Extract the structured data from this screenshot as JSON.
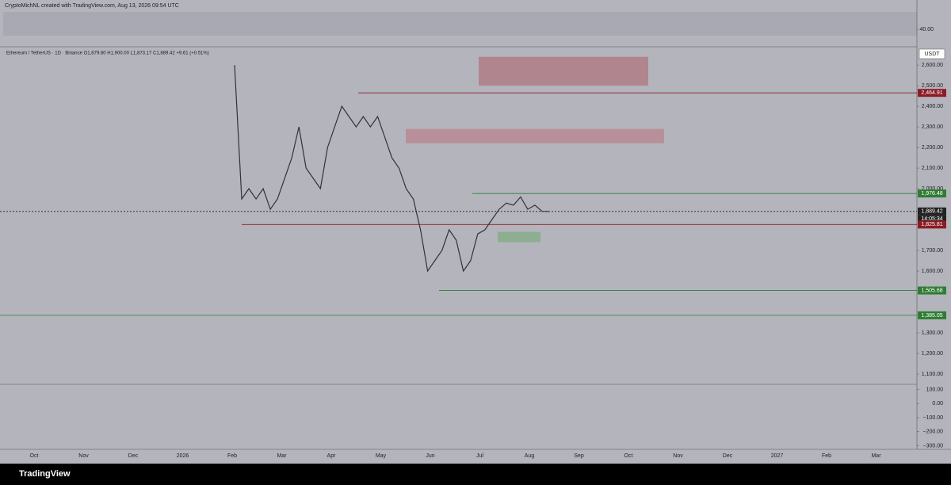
{
  "header": {
    "credit": "CryptoMichNL created with TradingView.com, Aug 13, 2026 09:54 UTC"
  },
  "symbol_line": "Ethereum / TetherUS · 1D · Binance  O1,879.80  H1,900.00  L1,873.17  C1,889.42  +9.61 (+0.51%)",
  "currency": "USDT",
  "countdown": "14:05:34",
  "footer": {
    "brand": "TradingView"
  },
  "rsi_panel": {
    "ticks": [
      {
        "value": 40,
        "label": "40.00"
      }
    ]
  },
  "macd_panel": {
    "ylim": [
      -320,
      120
    ],
    "ticks": [
      {
        "value": 100,
        "label": "100.00"
      },
      {
        "value": 0,
        "label": "0.00"
      },
      {
        "value": -100,
        "label": "−100.00"
      },
      {
        "value": -200,
        "label": "−200.00"
      },
      {
        "value": -300,
        "label": "−300.00"
      }
    ]
  },
  "chart_data": {
    "type": "line",
    "ylim": [
      1050,
      2685
    ],
    "yticks": [
      {
        "value": 1100,
        "label": "1,100.00"
      },
      {
        "value": 1200,
        "label": "1,200.00"
      },
      {
        "value": 1300,
        "label": "1,300.00"
      },
      {
        "value": 1600,
        "label": "1,600.00"
      },
      {
        "value": 1700,
        "label": "1,700.00"
      },
      {
        "value": 2000,
        "label": "2,000.00"
      },
      {
        "value": 2100,
        "label": "2,100.00"
      },
      {
        "value": 2200,
        "label": "2,200.00"
      },
      {
        "value": 2300,
        "label": "2,300.00"
      },
      {
        "value": 2400,
        "label": "2,400.00"
      },
      {
        "value": 2500,
        "label": "2,500.00"
      },
      {
        "value": 2600,
        "label": "2,600.00"
      }
    ],
    "x_labels": [
      "Oct",
      "Nov",
      "Dec",
      "2026",
      "Feb",
      "Mar",
      "Apr",
      "May",
      "Jun",
      "Jul",
      "Aug",
      "Sep",
      "Oct",
      "Nov",
      "Dec",
      "2027",
      "Feb",
      "Mar"
    ],
    "series": [
      {
        "color": "#333333",
        "values": [
          2600,
          1950,
          2000,
          1950,
          2000,
          1900,
          1950,
          2050,
          2150,
          2300,
          2100,
          2050,
          2000,
          2200,
          2300,
          2400,
          2350,
          2300,
          2350,
          2300,
          2350,
          2250,
          2150,
          2100,
          2000,
          1950,
          1800,
          1600,
          1650,
          1700,
          1800,
          1750,
          1600,
          1650,
          1780,
          1800,
          1850,
          1900,
          1930,
          1920,
          1960,
          1900,
          1920,
          1890,
          1889.42
        ]
      }
    ],
    "levels": [
      {
        "value": 2464.91,
        "label": "2,464.91",
        "color": "#8b1c24"
      },
      {
        "value": 1976.48,
        "label": "1,976.48",
        "color": "#2e7d32"
      },
      {
        "value": 1889.42,
        "label": "1,889.42",
        "color": "#222222"
      },
      {
        "value": 1825.81,
        "label": "1,825.81",
        "color": "#8b1c24"
      },
      {
        "value": 1505.68,
        "label": "1,505.68",
        "color": "#2e7d32"
      },
      {
        "value": 1385.05,
        "label": "1,385.05",
        "color": "#2e7d32"
      }
    ],
    "zones": [
      {
        "range": [
          2500,
          2640
        ],
        "color": "#b07c86"
      },
      {
        "range": [
          2220,
          2290
        ],
        "color": "#b88a94"
      },
      {
        "range": [
          1740,
          1790
        ],
        "color": "#86ad8a"
      }
    ]
  }
}
